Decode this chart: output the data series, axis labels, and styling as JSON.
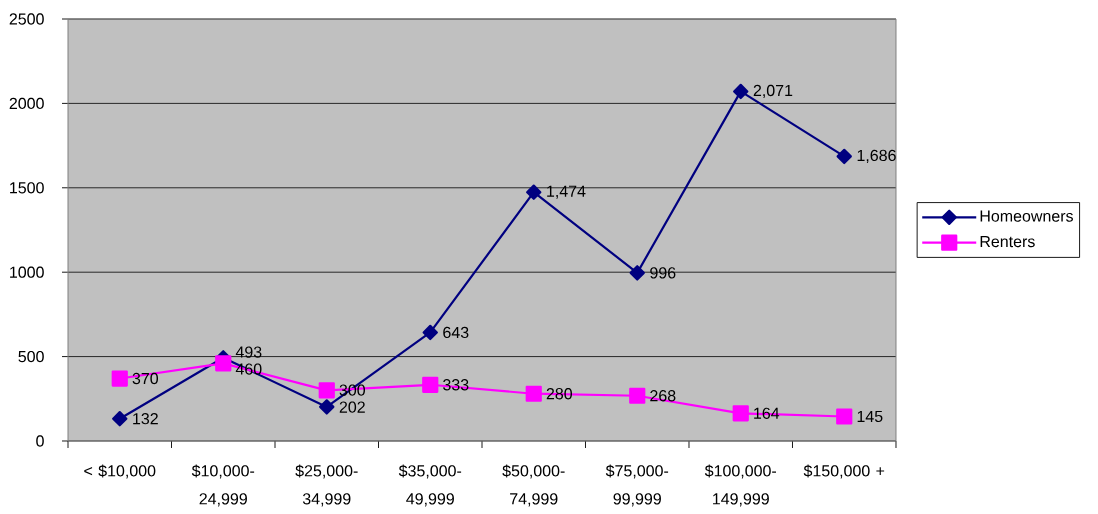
{
  "chart_data": {
    "type": "line",
    "categories": [
      "< $10,000",
      "$10,000-24,999",
      "$25,000-34,999",
      "$35,000-49,999",
      "$50,000-74,999",
      "$75,000-99,999",
      "$100,000-149,999",
      "$150,000 +"
    ],
    "series": [
      {
        "name": "Homeowners",
        "color": "#000080",
        "marker": "diamond",
        "values": [
          132,
          493,
          202,
          643,
          1474,
          996,
          2071,
          1686
        ],
        "value_labels": [
          "132",
          "493",
          "202",
          "643",
          "1,474",
          "996",
          "2,071",
          "1,686"
        ]
      },
      {
        "name": "Renters",
        "color": "#ff00ff",
        "marker": "square",
        "values": [
          370,
          460,
          300,
          333,
          280,
          268,
          164,
          145
        ],
        "value_labels": [
          "370",
          "460",
          "300",
          "333",
          "280",
          "268",
          "164",
          "145"
        ]
      }
    ],
    "ylim": [
      0,
      2500
    ],
    "yticks": [
      0,
      500,
      1000,
      1500,
      2000,
      2500
    ],
    "grid": "y",
    "legend": "right",
    "line_style": "solid"
  }
}
